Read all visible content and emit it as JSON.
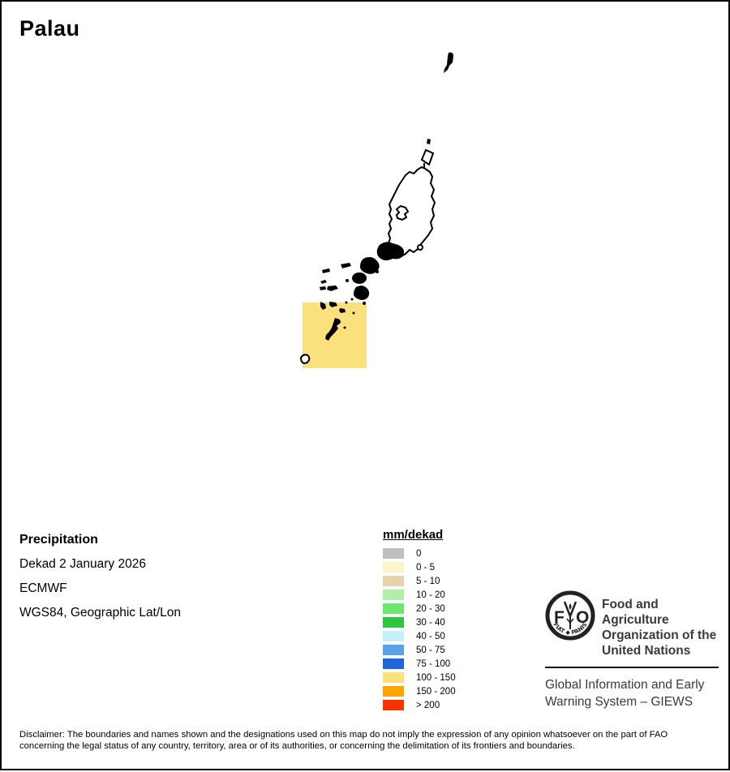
{
  "title": "Palau",
  "info": {
    "product": "Precipitation",
    "dekad": "Dekad 2 January 2026",
    "source": "ECMWF",
    "projection": "WGS84, Geographic Lat/Lon"
  },
  "map": {
    "region": "Palau islands",
    "cell": {
      "value_range": "100 - 150",
      "unit": "mm/dekad",
      "color": "#FBE17D"
    }
  },
  "legend": {
    "title": "mm/dekad",
    "items": [
      {
        "label": "0",
        "color": "#BFBFBF"
      },
      {
        "label": "0 - 5",
        "color": "#FAF6C9"
      },
      {
        "label": "5 - 10",
        "color": "#E8D3A9"
      },
      {
        "label": "10 - 20",
        "color": "#AFEFA9"
      },
      {
        "label": "20 - 30",
        "color": "#6DE771"
      },
      {
        "label": "30 - 40",
        "color": "#2BC83F"
      },
      {
        "label": "40 - 50",
        "color": "#C7EFF7"
      },
      {
        "label": "50 - 75",
        "color": "#58A0E7"
      },
      {
        "label": "75 - 100",
        "color": "#2165DB"
      },
      {
        "label": "100 - 150",
        "color": "#FBE07C"
      },
      {
        "label": "150 - 200",
        "color": "#FFA400"
      },
      {
        "label": "> 200",
        "color": "#FA3200"
      }
    ]
  },
  "footer": {
    "fao_lines": [
      "Food and Agriculture",
      "Organization of the",
      "United Nations"
    ],
    "giews_lines": [
      "Global Information and Early",
      "Warning System – GIEWS"
    ],
    "logo": {
      "letter_left": "F",
      "letter_right": "O",
      "motto_left": "FIAT",
      "separator": "◆",
      "motto_right": "PANIS"
    }
  },
  "disclaimer_lines": [
    "Disclaimer: The boundaries and names shown and the designations used on this map do not imply the expression of any opinion whatsoever on the part of FAO",
    "concerning the legal status of any country, territory, area or of its authorities, or concerning the delimitation of its frontiers and boundaries."
  ]
}
